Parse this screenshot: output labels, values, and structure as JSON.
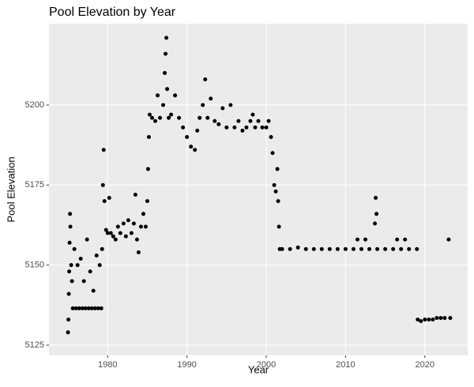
{
  "chart_data": {
    "type": "scatter",
    "title": "Pool Elevation by Year",
    "x_label": "Year",
    "y_label": "Pool Elevation",
    "color": "#000000",
    "grid": true,
    "xlim": [
      1972.6,
      2025.4
    ],
    "xticks": [
      1980,
      1990,
      2000,
      2010,
      2020
    ],
    "ylim": [
      5121.8,
      5225.4
    ],
    "yticks": [
      5125,
      5150,
      5175,
      5200
    ],
    "x": [
      1975.0,
      1975.05,
      1975.1,
      1975.15,
      1975.2,
      1975.25,
      1975.3,
      1975.4,
      1975.5,
      1975.6,
      1975.8,
      1976.0,
      1976.2,
      1976.4,
      1976.6,
      1976.8,
      1977.0,
      1977.2,
      1977.4,
      1977.6,
      1977.8,
      1978.0,
      1978.2,
      1978.4,
      1978.6,
      1978.8,
      1979.0,
      1979.2,
      1979.3,
      1979.4,
      1979.5,
      1979.6,
      1979.8,
      1980.0,
      1980.2,
      1980.4,
      1980.7,
      1981.0,
      1981.3,
      1981.6,
      1982.0,
      1982.3,
      1982.6,
      1983.0,
      1983.3,
      1983.5,
      1983.7,
      1983.9,
      1984.2,
      1984.5,
      1984.8,
      1985.0,
      1985.1,
      1985.2,
      1985.3,
      1985.6,
      1986.0,
      1986.3,
      1986.6,
      1987.0,
      1987.2,
      1987.3,
      1987.4,
      1987.5,
      1987.7,
      1988.0,
      1988.5,
      1989.0,
      1989.5,
      1990.0,
      1990.5,
      1991.0,
      1991.3,
      1991.6,
      1992.0,
      1992.3,
      1992.6,
      1993.0,
      1993.5,
      1994.0,
      1994.5,
      1995.0,
      1995.5,
      1996.0,
      1996.5,
      1997.0,
      1997.5,
      1998.0,
      1998.3,
      1998.6,
      1999.0,
      1999.5,
      2000.0,
      2000.3,
      2000.6,
      2000.8,
      2001.0,
      2001.2,
      2001.4,
      2001.5,
      2001.6,
      2001.7,
      2002.0,
      2003,
      2004,
      2005,
      2006,
      2007,
      2008,
      2009,
      2010,
      2011,
      2011.5,
      2012,
      2012.5,
      2013,
      2013.7,
      2013.8,
      2013.9,
      2014,
      2015,
      2016,
      2016.5,
      2017,
      2017.5,
      2018,
      2019,
      2019.1,
      2019.5,
      2020,
      2020.5,
      2021,
      2021.5,
      2022,
      2022.5,
      2023.0,
      2023.2
    ],
    "values": [
      5129,
      5133,
      5141,
      5148,
      5157,
      5166,
      5162,
      5150,
      5145,
      5136.5,
      5155,
      5136.5,
      5150,
      5136.5,
      5152,
      5136.5,
      5145,
      5136.5,
      5158,
      5136.5,
      5148,
      5136.5,
      5142,
      5136.5,
      5153,
      5136.5,
      5150,
      5136.5,
      5155,
      5175,
      5186,
      5170,
      5161,
      5160,
      5171,
      5160,
      5159,
      5158,
      5162,
      5160,
      5163,
      5159,
      5164,
      5160,
      5163,
      5172,
      5158,
      5154,
      5162,
      5166,
      5162,
      5170,
      5180,
      5190,
      5197,
      5196,
      5195,
      5203,
      5196,
      5200,
      5210,
      5216,
      5221,
      5205,
      5196,
      5197,
      5203,
      5196,
      5193,
      5190,
      5187,
      5186,
      5192,
      5196,
      5200,
      5208,
      5196,
      5202,
      5195,
      5194,
      5199,
      5193,
      5200,
      5193,
      5195,
      5192,
      5193,
      5195,
      5197,
      5193,
      5195,
      5193,
      5193,
      5195,
      5190,
      5185,
      5175,
      5173,
      5180,
      5170,
      5162,
      5155,
      5155,
      5155,
      5155.5,
      5155,
      5155,
      5155,
      5155,
      5155,
      5155,
      5155,
      5158,
      5155,
      5158,
      5155,
      5163,
      5171,
      5166,
      5155,
      5155,
      5155,
      5158,
      5155,
      5158,
      5155,
      5155,
      5133,
      5132.5,
      5133,
      5133,
      5133,
      5133.5,
      5133.5,
      5133.5,
      5158,
      5133.5
    ]
  }
}
